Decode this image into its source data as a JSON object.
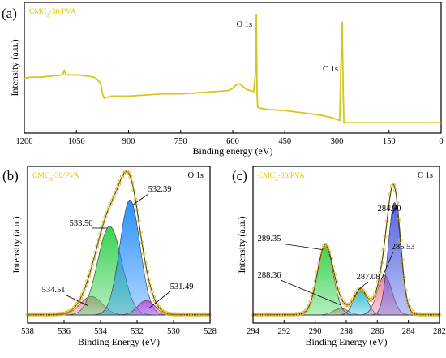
{
  "colors": {
    "survey_line": "#d8c51b",
    "envelope": "#4a4a00",
    "raw_marker": "#e3b320",
    "o1s_peaks": [
      "#e98aa6",
      "#2fd04a",
      "#1e8bff",
      "#c64fe0"
    ],
    "c1s_peaks": [
      "#e98aa6",
      "#2fd04a",
      "#23bcd8",
      "#f07aa0",
      "#4a5be0"
    ]
  },
  "chart_data": [
    {
      "panel": "(a)",
      "type": "line",
      "sample_label": "CMCd-30/PVA",
      "xlabel": "Binding energy (eV)",
      "ylabel": "Intensity (a.u.)",
      "xlim": [
        1200,
        0
      ],
      "x_reversed": true,
      "x_ticks": [
        1200,
        1050,
        900,
        750,
        600,
        450,
        300,
        150,
        0
      ],
      "annotations": [
        {
          "text": "O 1s",
          "x": 532
        },
        {
          "text": "C 1s",
          "x": 285
        }
      ],
      "series": [
        {
          "x": [
            1200,
            1180,
            1150,
            1120,
            1090,
            1085,
            1080,
            1050,
            1020,
            1000,
            990,
            980,
            975,
            970,
            965,
            960,
            950,
            900,
            850,
            800,
            750,
            700,
            650,
            610,
            600,
            590,
            580,
            560,
            540,
            535,
            532,
            530,
            528,
            520,
            500,
            450,
            400,
            350,
            320,
            300,
            292,
            288,
            285,
            282,
            280,
            270,
            250,
            200,
            150,
            100,
            50,
            0
          ],
          "y": [
            0.42,
            0.43,
            0.43,
            0.44,
            0.45,
            0.49,
            0.45,
            0.45,
            0.44,
            0.43,
            0.41,
            0.37,
            0.28,
            0.24,
            0.25,
            0.25,
            0.26,
            0.26,
            0.27,
            0.28,
            0.28,
            0.29,
            0.3,
            0.31,
            0.33,
            0.36,
            0.37,
            0.32,
            0.3,
            0.45,
            1.0,
            0.28,
            0.16,
            0.15,
            0.14,
            0.13,
            0.11,
            0.09,
            0.07,
            0.05,
            0.04,
            0.6,
            0.93,
            0.3,
            0.02,
            0.02,
            0.02,
            0.02,
            0.02,
            0.02,
            0.02,
            0.02
          ]
        }
      ]
    },
    {
      "panel": "(b)",
      "type": "line",
      "sample_label": "CMCd-30/PVA",
      "corner_label": "O 1s",
      "xlabel": "Binding Energy (eV)",
      "ylabel": "Intensity (a.u.)",
      "xlim": [
        538,
        528
      ],
      "x_reversed": true,
      "x_ticks": [
        538,
        536,
        534,
        532,
        530,
        528
      ],
      "peaks": [
        {
          "label": "534.51",
          "center": 534.51,
          "height": 0.14,
          "fwhm": 1.4
        },
        {
          "label": "533.50",
          "center": 533.5,
          "height": 0.67,
          "fwhm": 1.55
        },
        {
          "label": "532.39",
          "center": 532.39,
          "height": 0.87,
          "fwhm": 1.3
        },
        {
          "label": "531.49",
          "center": 531.49,
          "height": 0.11,
          "fwhm": 1.1
        }
      ]
    },
    {
      "panel": "(c)",
      "type": "line",
      "sample_label": "CMCd-30/PVA",
      "corner_label": "C 1s",
      "xlabel": "Binding Energy (eV)",
      "ylabel": "Intensity (a.u.)",
      "xlim": [
        294,
        282
      ],
      "x_reversed": true,
      "x_ticks": [
        294,
        292,
        290,
        288,
        286,
        284,
        282
      ],
      "peaks": [
        {
          "label": "288.36",
          "center": 288.36,
          "height": 0.05,
          "fwhm": 1.1
        },
        {
          "label": "289.35",
          "center": 289.35,
          "height": 0.52,
          "fwhm": 1.2
        },
        {
          "label": "287.08",
          "center": 287.08,
          "height": 0.19,
          "fwhm": 1.0
        },
        {
          "label": "285.53",
          "center": 285.53,
          "height": 0.3,
          "fwhm": 1.1
        },
        {
          "label": "284.90",
          "center": 284.9,
          "height": 0.85,
          "fwhm": 0.95
        }
      ]
    }
  ]
}
